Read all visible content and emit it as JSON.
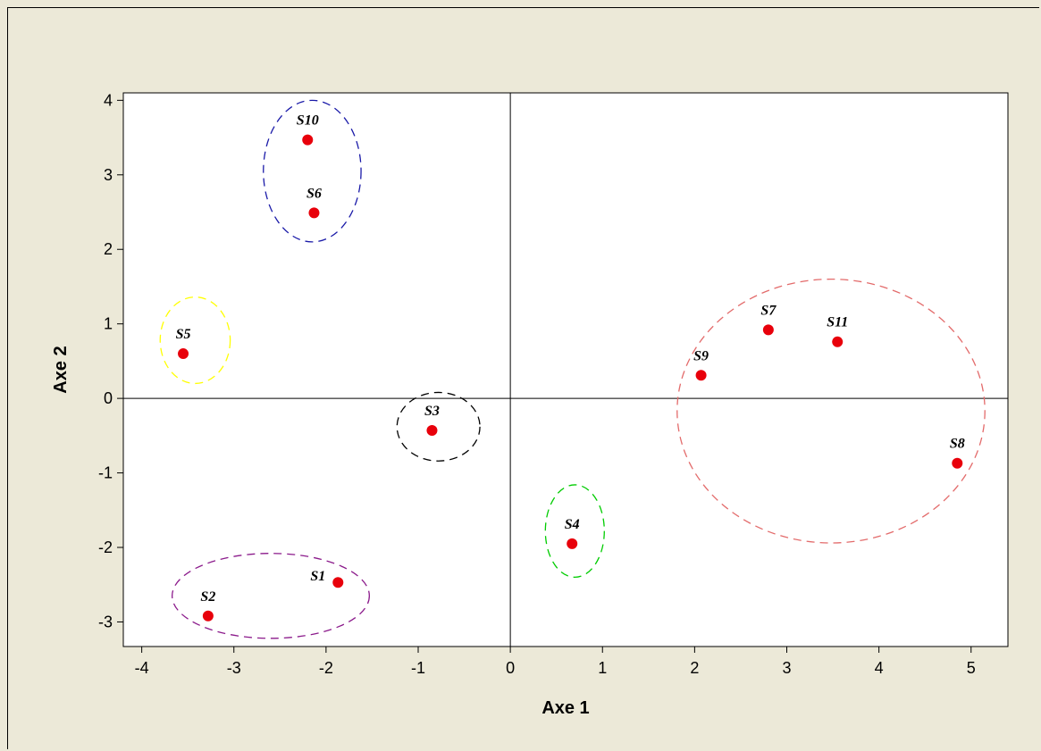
{
  "chart_data": {
    "type": "scatter",
    "title": "",
    "xlabel": "Axe 1",
    "ylabel": "Axe 2",
    "xlim": [
      -4.2,
      5.4
    ],
    "ylim": [
      -3.33,
      4.1
    ],
    "xticks": [
      -4,
      -3,
      -2,
      -1,
      0,
      1,
      2,
      3,
      4,
      5
    ],
    "yticks": [
      -3,
      -2,
      -1,
      0,
      1,
      2,
      3,
      4
    ],
    "grid": false,
    "reference_lines": {
      "x": 0,
      "y": 0
    },
    "point_color": "#e8000b",
    "points": [
      {
        "label": "S1",
        "x": -1.87,
        "y": -2.47
      },
      {
        "label": "S2",
        "x": -3.28,
        "y": -2.92
      },
      {
        "label": "S3",
        "x": -0.85,
        "y": -0.43
      },
      {
        "label": "S4",
        "x": 0.67,
        "y": -1.95
      },
      {
        "label": "S5",
        "x": -3.55,
        "y": 0.6
      },
      {
        "label": "S6",
        "x": -2.13,
        "y": 2.49
      },
      {
        "label": "S7",
        "x": 2.8,
        "y": 0.92
      },
      {
        "label": "S8",
        "x": 4.85,
        "y": -0.87
      },
      {
        "label": "S9",
        "x": 2.07,
        "y": 0.31
      },
      {
        "label": "S10",
        "x": -2.2,
        "y": 3.47
      },
      {
        "label": "S11",
        "x": 3.55,
        "y": 0.76
      }
    ],
    "clusters": [
      {
        "members": [
          "S6",
          "S10"
        ],
        "color": "#1a1aa8",
        "cx": -2.15,
        "cy": 3.05,
        "rx": 0.53,
        "ry": 0.95
      },
      {
        "members": [
          "S5"
        ],
        "color": "#ffff00",
        "cx": -3.42,
        "cy": 0.78,
        "rx": 0.38,
        "ry": 0.58
      },
      {
        "members": [
          "S3"
        ],
        "color": "#000000",
        "cx": -0.78,
        "cy": -0.38,
        "rx": 0.45,
        "ry": 0.46
      },
      {
        "members": [
          "S4"
        ],
        "color": "#00cc00",
        "cx": 0.7,
        "cy": -1.78,
        "rx": 0.32,
        "ry": 0.62
      },
      {
        "members": [
          "S1",
          "S2"
        ],
        "color": "#8b1a8b",
        "cx": -2.6,
        "cy": -2.65,
        "rx": 1.07,
        "ry": 0.57
      },
      {
        "members": [
          "S7",
          "S8",
          "S9",
          "S11"
        ],
        "color": "#e36b6b",
        "cx": 3.48,
        "cy": -0.17,
        "rx": 1.67,
        "ry": 1.77
      }
    ]
  }
}
